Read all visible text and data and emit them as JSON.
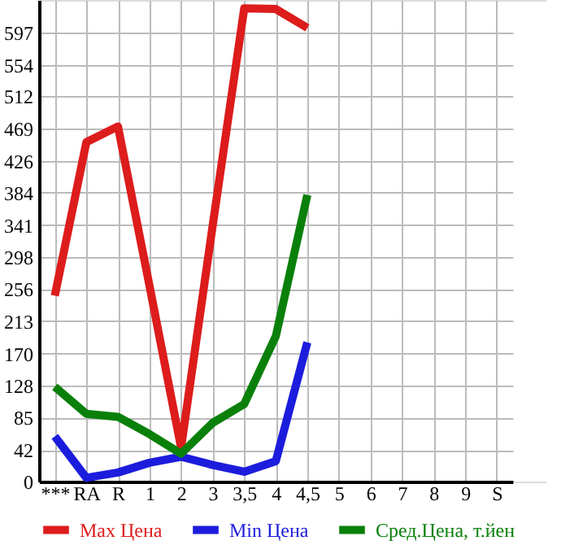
{
  "chart_data": {
    "type": "line",
    "categories": [
      "***",
      "RA",
      "R",
      "1",
      "2",
      "3",
      "3,5",
      "4",
      "4,5",
      "5",
      "6",
      "7",
      "8",
      "9",
      "S"
    ],
    "series": [
      {
        "name": "Max Цена",
        "color": "#dd1c1c",
        "values": [
          247,
          451,
          472,
          260,
          45,
          340,
          629,
          628,
          603,
          null,
          null,
          null,
          null,
          null,
          null
        ]
      },
      {
        "name": "Min Цена",
        "color": "#1c1cdd",
        "values": [
          60,
          5,
          12,
          25,
          33,
          22,
          13,
          27,
          185,
          null,
          null,
          null,
          null,
          null,
          null
        ]
      },
      {
        "name": "Сред.Цена, т.йен",
        "color": "#0a800a",
        "values": [
          126,
          90,
          86,
          63,
          37,
          78,
          103,
          193,
          381,
          null,
          null,
          null,
          null,
          null,
          null
        ]
      }
    ],
    "ylim": [
      0,
      640
    ],
    "yticks": [
      0,
      42,
      85,
      128,
      170,
      213,
      256,
      298,
      341,
      384,
      426,
      469,
      512,
      554,
      597
    ],
    "grid": true,
    "legend": "bottom",
    "marker": "none",
    "line_style": "solid"
  }
}
